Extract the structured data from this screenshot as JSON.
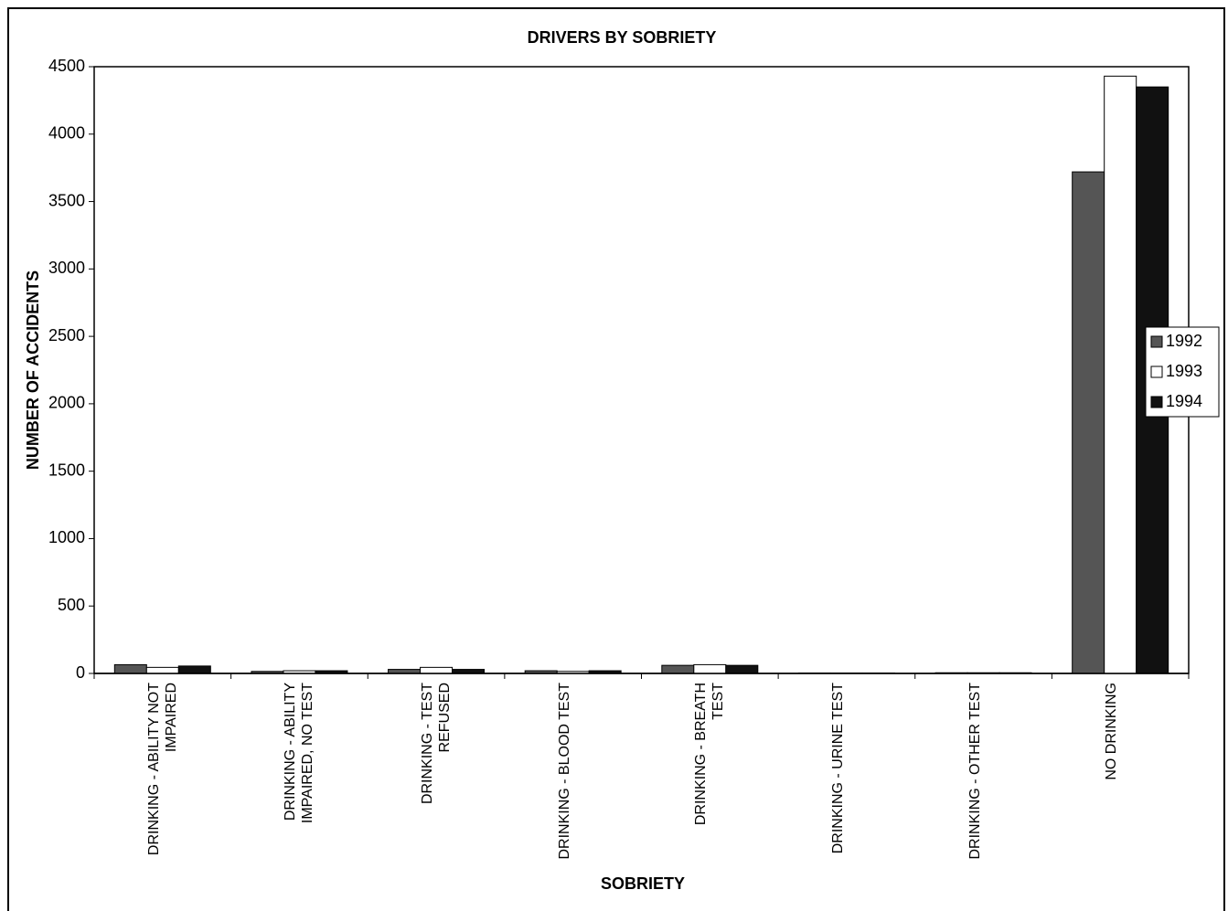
{
  "chart_data": {
    "type": "bar",
    "title": "DRIVERS BY SOBRIETY",
    "x_label": "SOBRIETY",
    "y_label": "NUMBER OF ACCIDENTS",
    "categories": [
      "DRINKING - ABILITY NOT IMPAIRED",
      "DRINKING - ABILITY IMPAIRED, NO TEST",
      "DRINKING - TEST REFUSED",
      "DRINKING - BLOOD TEST",
      "DRINKING - BREATH TEST",
      "DRINKING - URINE TEST",
      "DRINKING - OTHER TEST",
      "NO DRINKING"
    ],
    "series": [
      {
        "name": "1992",
        "color": "#555555",
        "values": [
          65,
          15,
          30,
          20,
          60,
          3,
          5,
          3720
        ]
      },
      {
        "name": "1993",
        "color": "#ffffff",
        "values": [
          45,
          20,
          45,
          15,
          65,
          3,
          5,
          4430
        ]
      },
      {
        "name": "1994",
        "color": "#111111",
        "values": [
          55,
          20,
          30,
          20,
          60,
          3,
          5,
          4350
        ]
      }
    ],
    "ylim": [
      0,
      4500
    ],
    "yticks": [
      0,
      500,
      1000,
      1500,
      2000,
      2500,
      3000,
      3500,
      4000,
      4500
    ],
    "legend": "right"
  }
}
